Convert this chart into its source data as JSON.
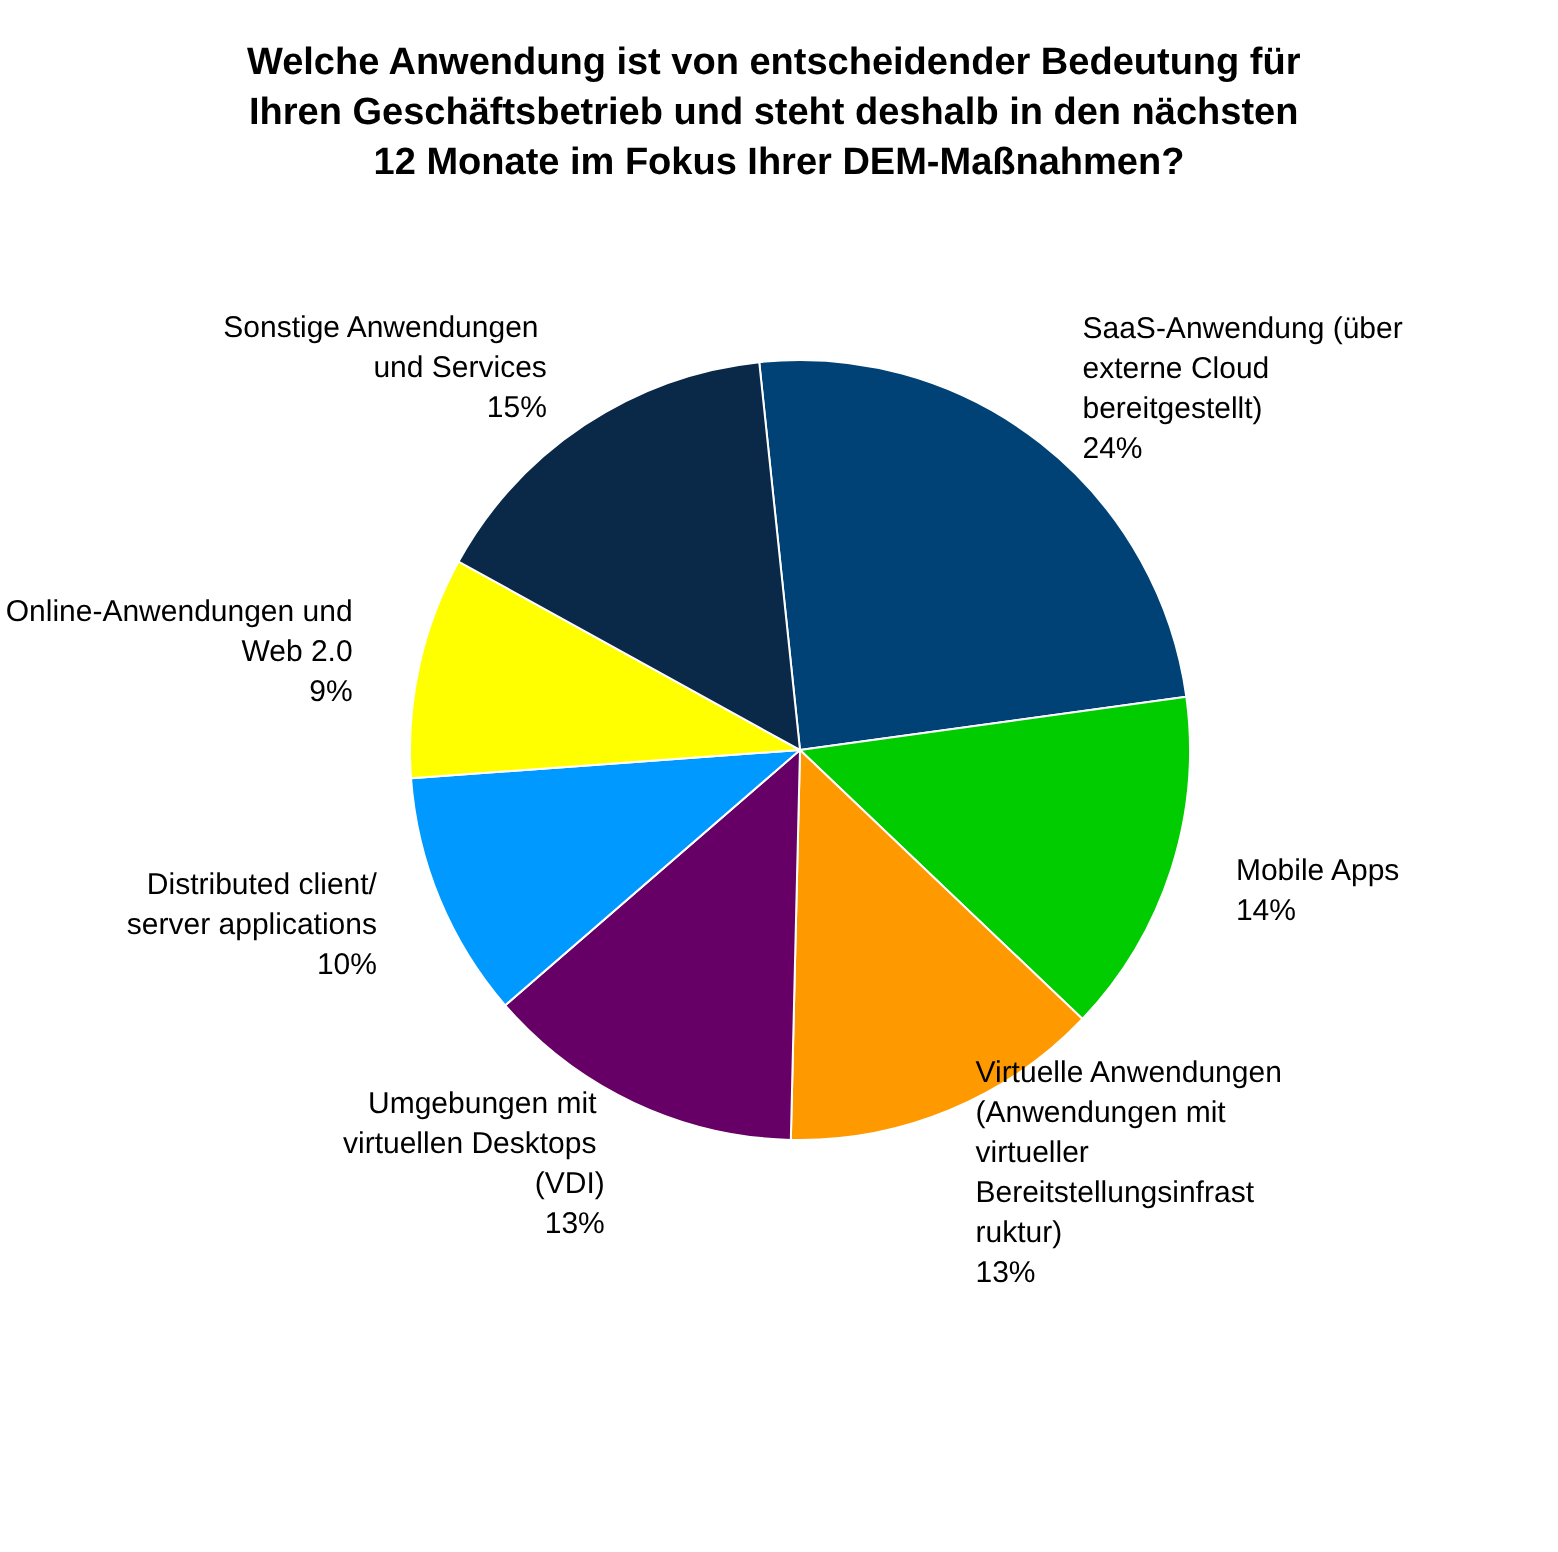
{
  "chart_data": {
    "type": "pie",
    "title": "Welche Anwendung ist von entscheidender Bedeutung für Ihren Geschäftsbetrieb und steht deshalb in den nächsten 12 Monate im Fokus Ihrer DEM-Maßnahmen?",
    "categories": [
      "SaaS-Anwendung (über externe Cloud bereitgestellt)",
      "Mobile Apps",
      "Virtuelle Anwendungen (Anwendungen mit virtueller Bereitstellungsinfrastruktur)",
      "Umgebungen mit virtuellen Desktops (VDI)",
      "Distributed client/server applications",
      "Online-Anwendungen und Web 2.0",
      "Sonstige Anwendungen und Services"
    ],
    "values": [
      24,
      14,
      13,
      13,
      10,
      9,
      15
    ],
    "value_labels": [
      "24%",
      "14%",
      "13%",
      "13%",
      "10%",
      "9%",
      "15%"
    ],
    "colors": [
      "#004276",
      "#00cc00",
      "#ff9900",
      "#660066",
      "#0099ff",
      "#ffff00",
      "#0a2848"
    ],
    "legend": false
  }
}
